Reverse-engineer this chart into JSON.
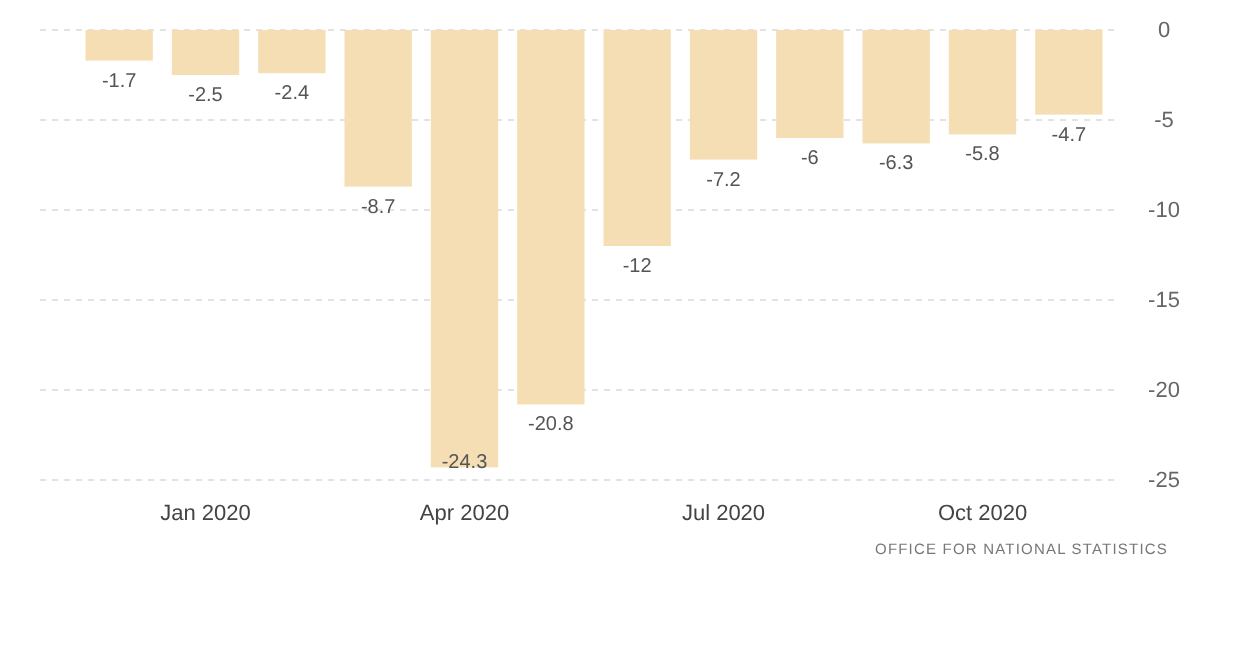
{
  "chart_data": {
    "type": "bar",
    "categories": [
      null,
      "Jan 2020",
      null,
      null,
      "Apr 2020",
      null,
      null,
      "Jul 2020",
      null,
      null,
      "Oct 2020",
      null
    ],
    "values": [
      -1.7,
      -2.5,
      -2.4,
      -8.7,
      -24.3,
      -20.8,
      -12,
      -7.2,
      -6,
      -6.3,
      -5.8,
      -4.7
    ],
    "color": "#f5deb3",
    "ylim": [
      -25,
      0
    ],
    "yticks": [
      0,
      -5,
      -10,
      -15,
      -20,
      -25
    ],
    "grid": "y",
    "data_labels": true,
    "annotations": [
      "OFFICE FOR NATIONAL STATISTICS"
    ]
  }
}
